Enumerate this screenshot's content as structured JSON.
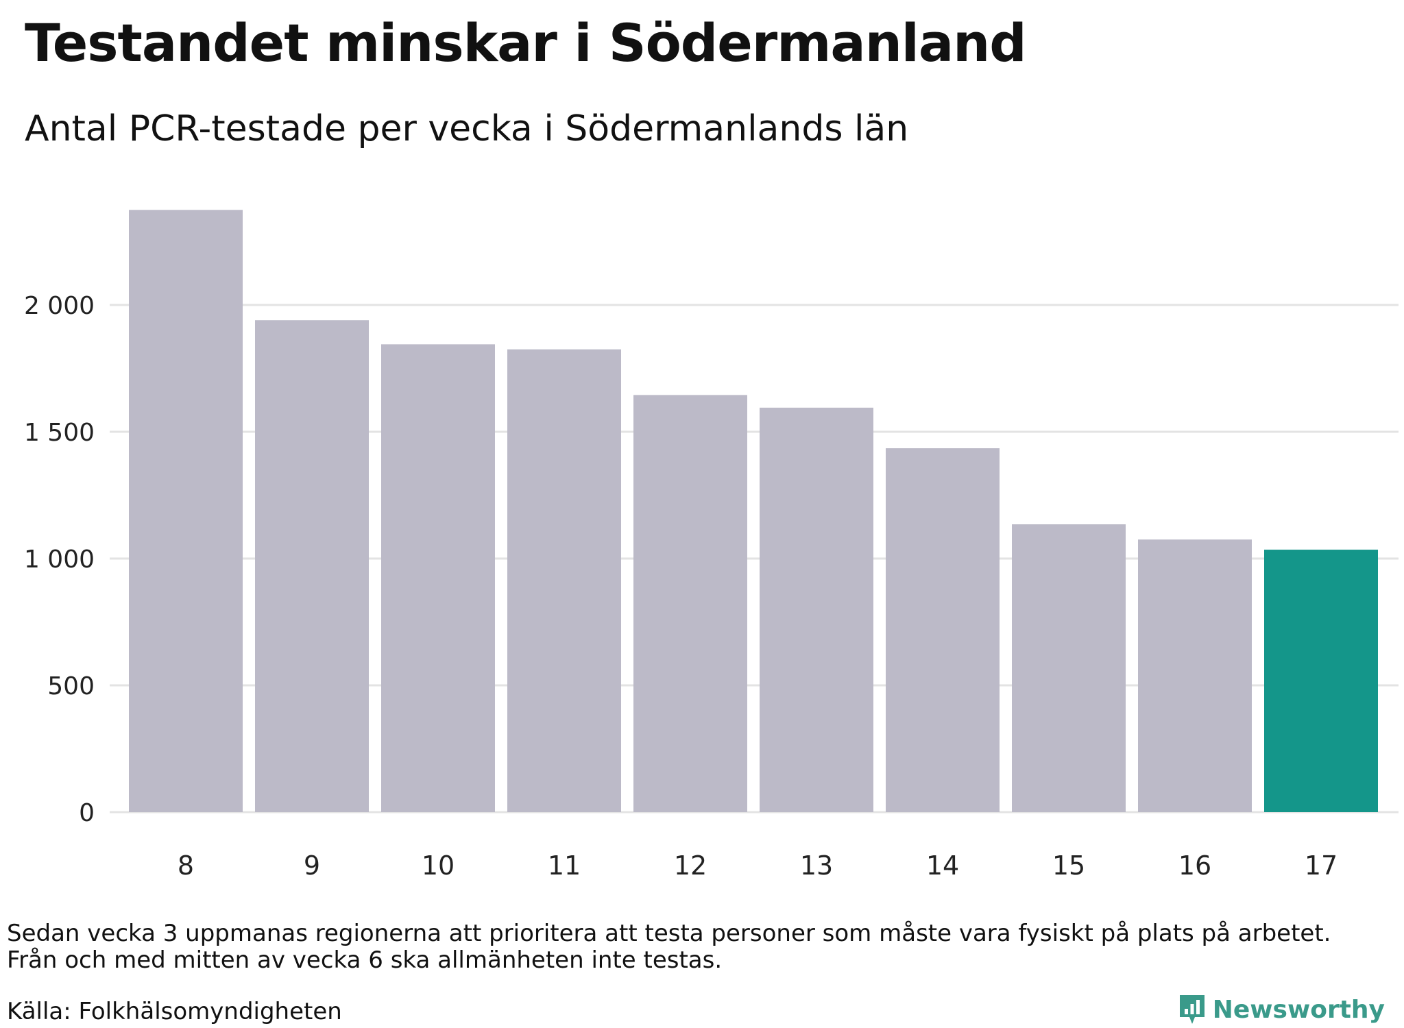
{
  "header": {
    "title": "Testandet minskar i Södermanland",
    "subtitle": "Antal PCR-testade per vecka i Södermanlands län"
  },
  "footer": {
    "note_lines": [
      "Sedan vecka 3 uppmanas regionerna att prioritera att testa personer som måste vara fysiskt på plats på arbetet.",
      "Från och med mitten av vecka 6 ska allmänheten inte testas."
    ],
    "source": "Källa: Folkhälsomyndigheten",
    "brand": "Newsworthy"
  },
  "colors": {
    "bar": "#bcbac8",
    "highlight": "#14968a",
    "grid": "#e3e3e3",
    "brand": "#3a9a8a"
  },
  "chart_data": {
    "type": "bar",
    "categories": [
      "8",
      "9",
      "10",
      "11",
      "12",
      "13",
      "14",
      "15",
      "16",
      "17"
    ],
    "values": [
      2375,
      1940,
      1845,
      1825,
      1645,
      1595,
      1435,
      1135,
      1075,
      1035
    ],
    "highlight_index": 9,
    "y_ticks": [
      0,
      500,
      1000,
      1500,
      2000
    ],
    "y_tick_labels": [
      "0",
      "500",
      "1 000",
      "1 500",
      "2 000"
    ],
    "ylim": [
      0,
      2500
    ],
    "grid": true,
    "legend": "none",
    "xlabel": "",
    "ylabel": ""
  }
}
